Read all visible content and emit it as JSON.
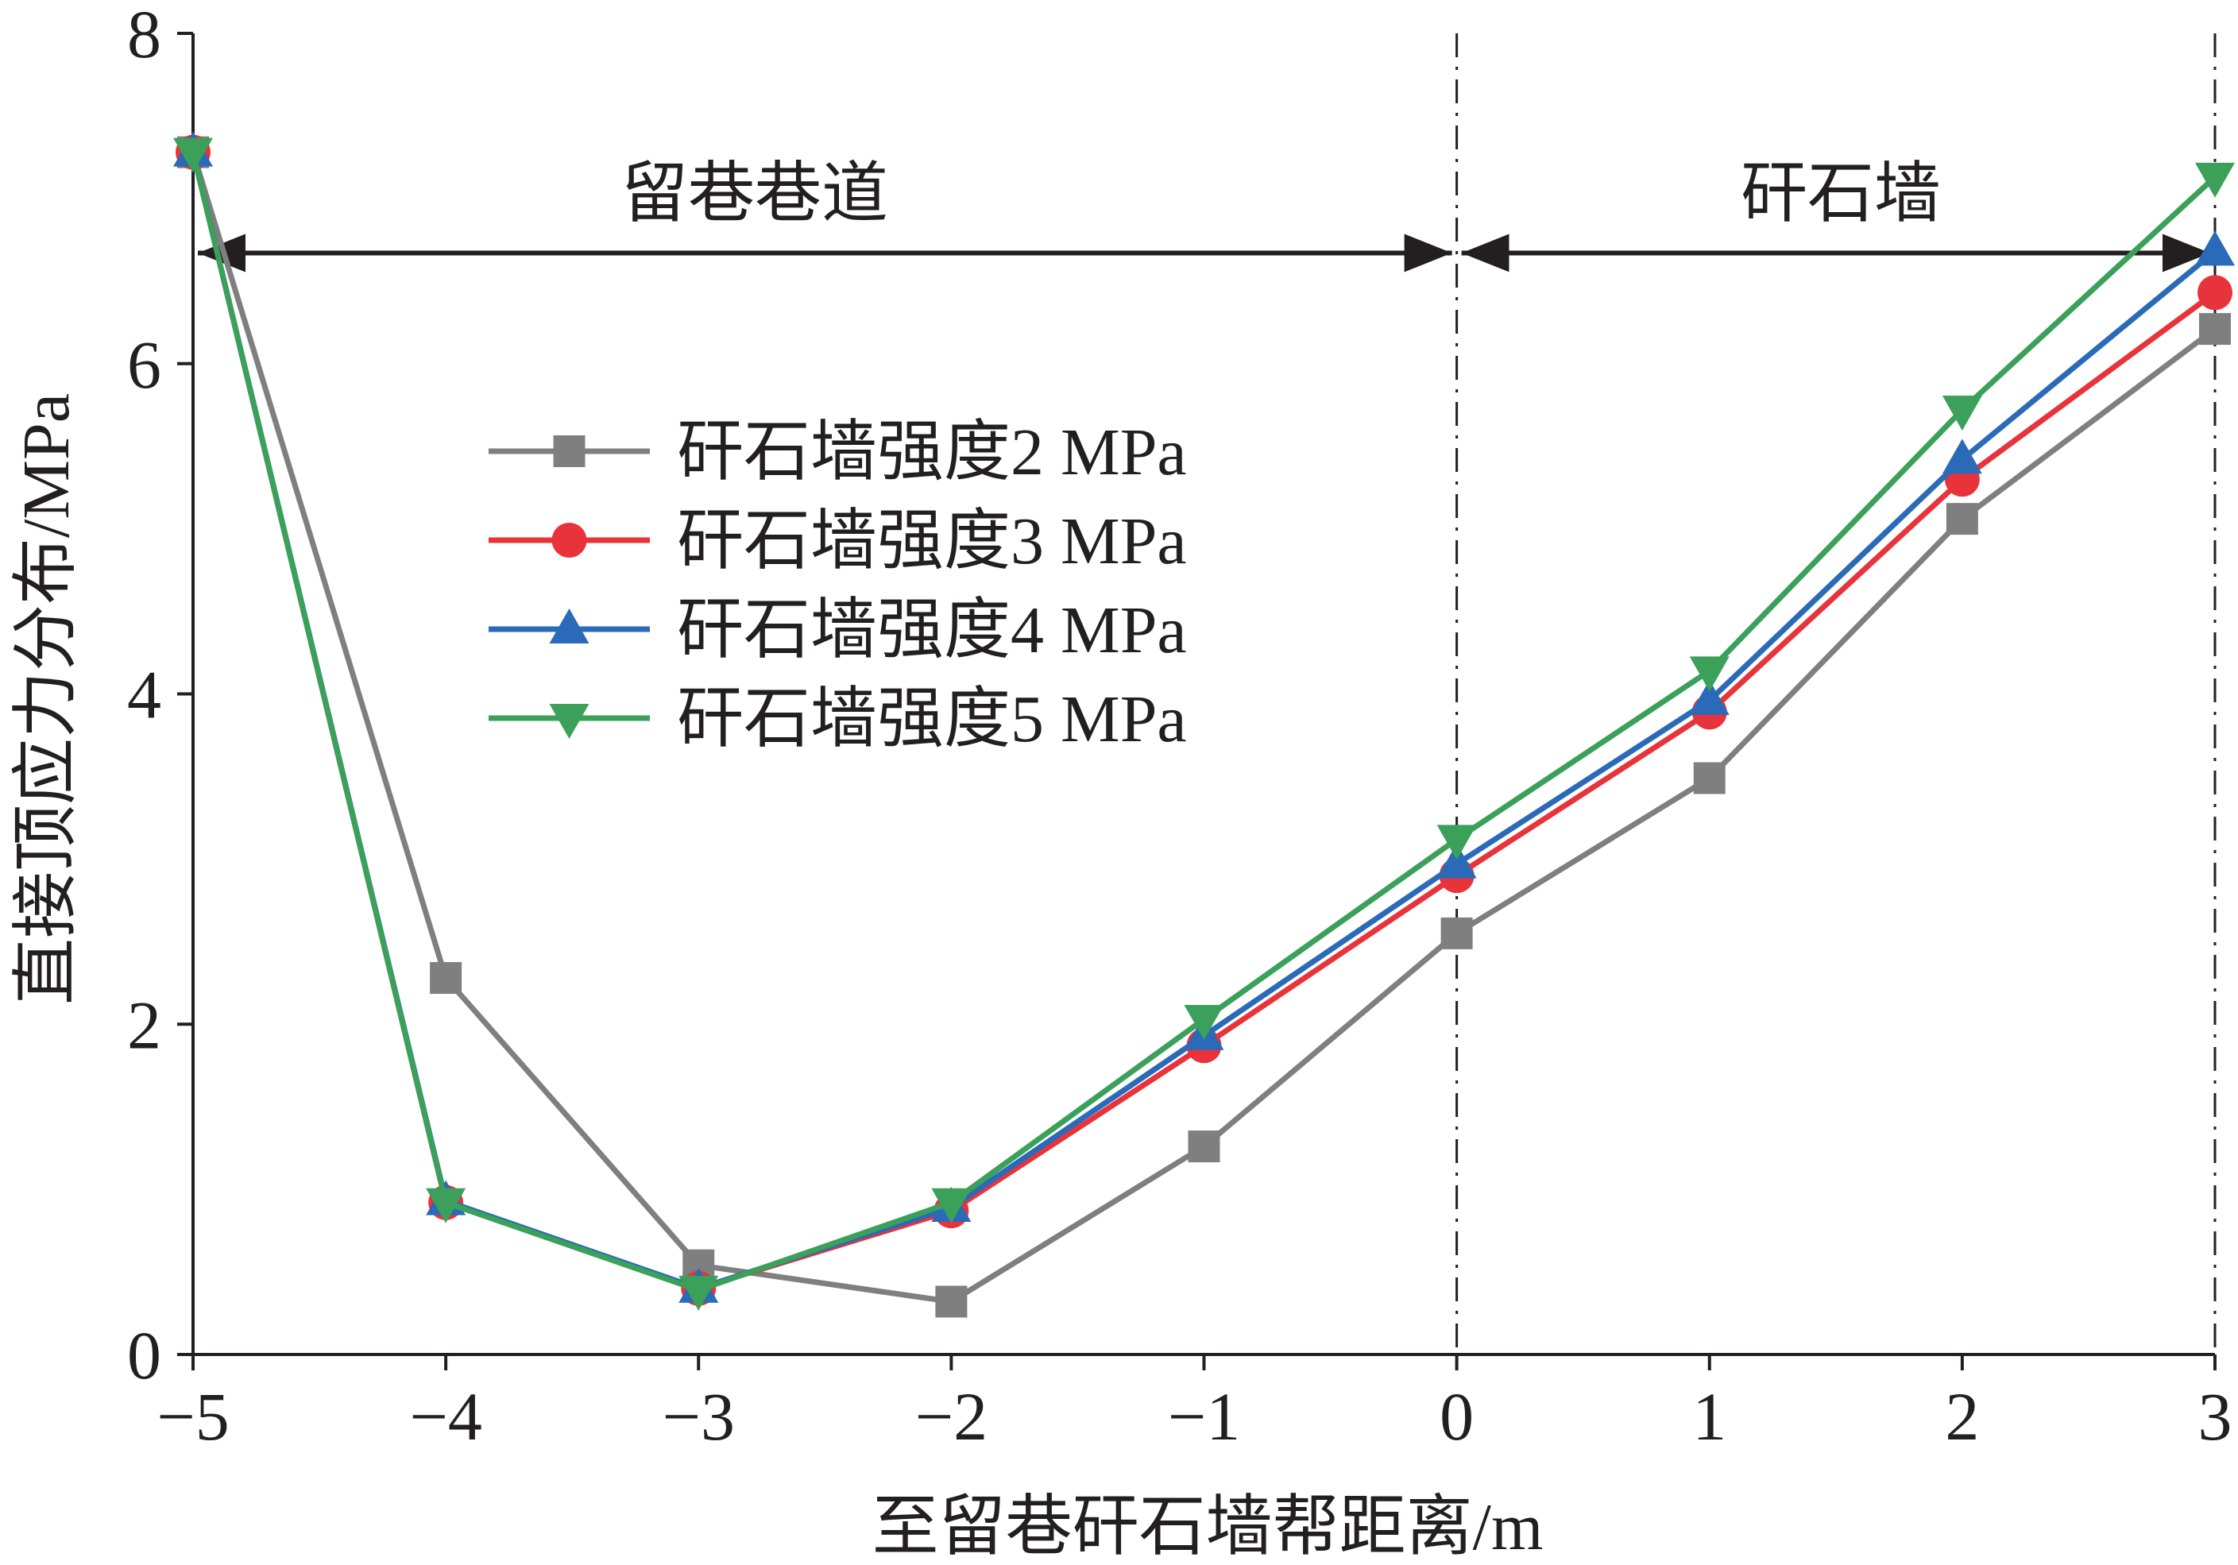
{
  "chart_data": {
    "type": "line",
    "xlabel": "至留巷矸石墙帮距离/m",
    "ylabel": "直接顶应力分布/MPa",
    "xlim": [
      -5,
      3
    ],
    "ylim": [
      0,
      8
    ],
    "x_ticks": [
      "−5",
      "−4",
      "−3",
      "−2",
      "−1",
      "0",
      "1",
      "2",
      "3"
    ],
    "y_ticks": [
      "0",
      "2",
      "4",
      "6",
      "8"
    ],
    "grid": false,
    "legend_position": "center-left",
    "x": [
      -5,
      -4,
      -3,
      -2,
      -1,
      0,
      1,
      2,
      3
    ],
    "series": [
      {
        "name": "矸石墙强度2 MPa",
        "color": "#7f7f7f",
        "marker": "square",
        "values": [
          7.28,
          2.28,
          0.54,
          0.32,
          1.26,
          2.55,
          3.49,
          5.06,
          6.21
        ]
      },
      {
        "name": "矸石墙强度3 MPa",
        "color": "#e8333a",
        "marker": "circle",
        "values": [
          7.28,
          0.92,
          0.4,
          0.87,
          1.87,
          2.9,
          3.89,
          5.3,
          6.43
        ]
      },
      {
        "name": "矸石墙强度4 MPa",
        "color": "#2a6ab8",
        "marker": "triangle-up",
        "values": [
          7.28,
          0.93,
          0.4,
          0.89,
          1.93,
          2.97,
          3.96,
          5.42,
          6.68
        ]
      },
      {
        "name": "矸石墙强度5 MPa",
        "color": "#3aa05a",
        "marker": "triangle-down",
        "values": [
          7.28,
          0.92,
          0.39,
          0.92,
          2.03,
          3.12,
          4.14,
          5.72,
          7.13
        ]
      }
    ],
    "annotations": {
      "region_left": "留巷巷道",
      "region_right": "矸石墙",
      "arrow_y": 6.67,
      "divider_x": [
        0,
        3
      ]
    }
  }
}
